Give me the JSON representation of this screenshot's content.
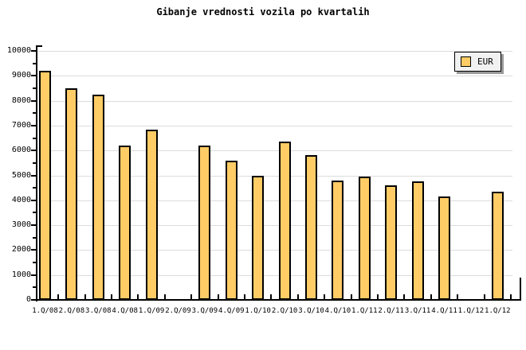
{
  "chart_data": {
    "type": "bar",
    "title": "Gibanje vrednosti vozila po kvartalih",
    "xlabel": "",
    "ylabel": "",
    "categories": [
      "1.Q/08",
      "2.Q/08",
      "3.Q/08",
      "4.Q/08",
      "1.Q/09",
      "2.Q/09",
      "3.Q/09",
      "4.Q/09",
      "1.Q/10",
      "2.Q/10",
      "3.Q/10",
      "4.Q/10",
      "1.Q/11",
      "2.Q/11",
      "3.Q/11",
      "4.Q/11",
      "1.Q/12",
      "1.Q/12"
    ],
    "series": [
      {
        "name": "EUR",
        "values": [
          9200,
          8500,
          8250,
          6200,
          6850,
          null,
          6200,
          5600,
          5000,
          6350,
          5800,
          4800,
          4950,
          4600,
          4750,
          4150,
          null,
          4350
        ]
      }
    ],
    "ylim": [
      0,
      10000
    ],
    "y_tick_step": 1000,
    "y_minor_tick_step": 500,
    "y_tick_labels": [
      "0",
      "1000",
      "2000",
      "3000",
      "4000",
      "5000",
      "6000",
      "7000",
      "8000",
      "9000",
      "10000"
    ],
    "grid": "horizontal-major",
    "legend": {
      "position": "top-right",
      "entries": [
        {
          "label": "EUR",
          "swatch_color": "#FFCC66"
        }
      ]
    },
    "colors": {
      "bar_fill": "#FFCC66",
      "bar_border": "#000000",
      "gridline": "#DCDCDC",
      "axis": "#000000",
      "background": "#FFFFFF",
      "legend_fill": "#F1F1F1",
      "legend_shadow": "#999999",
      "text": "#000000"
    }
  }
}
